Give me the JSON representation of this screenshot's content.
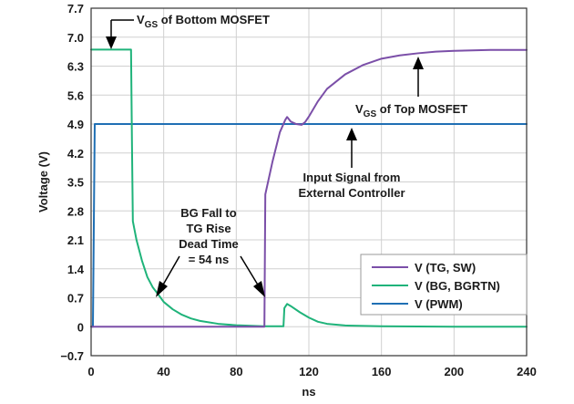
{
  "chart_data": {
    "type": "line",
    "xlabel": "ns",
    "ylabel": "Voltage (V)",
    "xlim": [
      0,
      240
    ],
    "ylim": [
      -0.7,
      7.7
    ],
    "x_ticks": [
      0,
      40,
      80,
      120,
      160,
      200,
      240
    ],
    "y_ticks": [
      -0.7,
      0,
      0.7,
      1.4,
      2.1,
      2.8,
      3.5,
      4.2,
      4.9,
      5.6,
      6.3,
      7.0,
      7.7
    ],
    "y_tick_labels": [
      "−0.7",
      "0",
      "0.7",
      "1.4",
      "2.1",
      "2.8",
      "3.5",
      "4.2",
      "4.9",
      "5.6",
      "6.3",
      "7.0",
      "7.7"
    ],
    "grid": true,
    "legend_position": "bottom-right",
    "series": [
      {
        "name": "V (TG, SW)",
        "color": "#7b4fa8",
        "x": [
          0,
          20,
          40,
          60,
          80,
          95.5,
          96,
          100,
          104,
          107,
          108,
          110,
          113,
          116,
          118,
          120,
          125,
          130,
          140,
          150,
          160,
          170,
          180,
          190,
          200,
          210,
          220,
          230,
          240
        ],
        "y": [
          0,
          0,
          0,
          0,
          0,
          0,
          3.2,
          4.0,
          4.7,
          5.0,
          5.07,
          4.96,
          4.9,
          4.88,
          4.95,
          5.08,
          5.45,
          5.75,
          6.1,
          6.33,
          6.48,
          6.56,
          6.61,
          6.65,
          6.67,
          6.68,
          6.69,
          6.69,
          6.69
        ]
      },
      {
        "name": "V (BG, BGRTN)",
        "color": "#1fb37a",
        "x": [
          0,
          10,
          20,
          22,
          22.5,
          23,
          25,
          28,
          31,
          34,
          37,
          40,
          45,
          50,
          55,
          60,
          70,
          80,
          90,
          95,
          106,
          106.5,
          108,
          110,
          115,
          120,
          125,
          130,
          140,
          160,
          200,
          240
        ],
        "y": [
          6.7,
          6.7,
          6.7,
          6.7,
          4.5,
          2.55,
          2.1,
          1.6,
          1.2,
          0.95,
          0.78,
          0.6,
          0.42,
          0.29,
          0.2,
          0.14,
          0.07,
          0.035,
          0.02,
          0.01,
          0.01,
          0.45,
          0.55,
          0.5,
          0.35,
          0.22,
          0.12,
          0.07,
          0.03,
          0.01,
          0,
          0
        ]
      },
      {
        "name": "V (PWM)",
        "color": "#1f6fb4",
        "x": [
          0,
          1,
          2,
          240
        ],
        "y": [
          0,
          0,
          4.9,
          4.9
        ]
      }
    ],
    "annotations": [
      {
        "lines": [
          "V_GS of Bottom MOSFET"
        ],
        "base": "V",
        "sub": "GS",
        "rest": " of Bottom MOSFET"
      },
      {
        "base": "V",
        "sub": "GS",
        "rest": " of Top MOSFET"
      },
      {
        "lines": [
          "Input Signal from",
          "External Controller"
        ]
      },
      {
        "lines": [
          "BG Fall to",
          "TG Rise",
          "Dead Time",
          "= 54 ns"
        ]
      }
    ]
  }
}
